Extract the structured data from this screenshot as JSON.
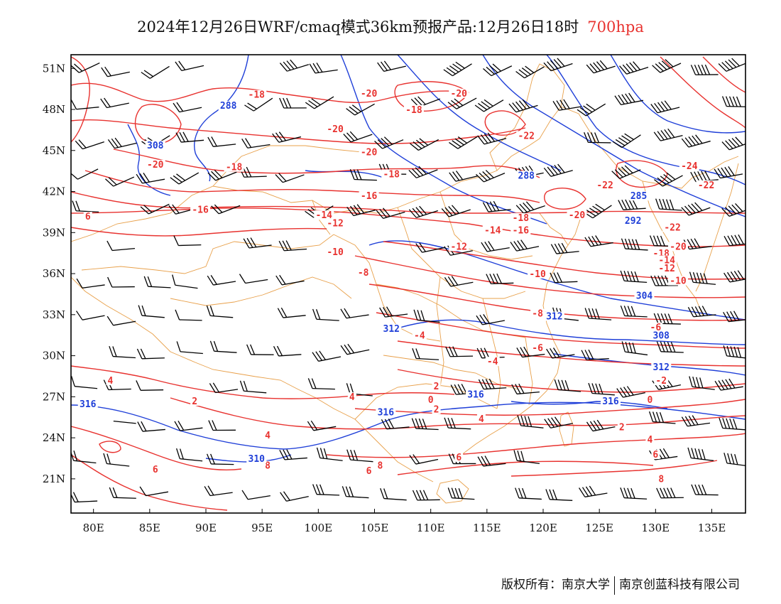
{
  "title": {
    "main": "2024年12月26日WRF/cmaq模式36km预报产品:12月26日18时",
    "level": "700hpa"
  },
  "map": {
    "lon_range": [
      78,
      138
    ],
    "lat_range": [
      18.5,
      52
    ],
    "lon_ticks": [
      "80E",
      "85E",
      "90E",
      "95E",
      "100E",
      "105E",
      "110E",
      "115E",
      "120E",
      "125E",
      "130E",
      "135E"
    ],
    "lat_ticks": [
      "51N",
      "48N",
      "45N",
      "42N",
      "39N",
      "36N",
      "33N",
      "30N",
      "27N",
      "24N",
      "21N"
    ],
    "colors": {
      "temperature": "#e8322f",
      "height": "#1f3fd8",
      "boundary": "#e8a04a",
      "wind": "#000000"
    },
    "temperature_labels": [
      {
        "text": "-18",
        "lon": 94.5,
        "lat": 48.9
      },
      {
        "text": "-20",
        "lon": 104.5,
        "lat": 49.0
      },
      {
        "text": "-20",
        "lon": 101.5,
        "lat": 46.4
      },
      {
        "text": "-20",
        "lon": 85.5,
        "lat": 43.8
      },
      {
        "text": "-18",
        "lon": 92.5,
        "lat": 43.6
      },
      {
        "text": "-20",
        "lon": 112.5,
        "lat": 49.0
      },
      {
        "text": "-18",
        "lon": 108.5,
        "lat": 47.8
      },
      {
        "text": "-20",
        "lon": 104.5,
        "lat": 44.7
      },
      {
        "text": "-18",
        "lon": 106.5,
        "lat": 43.1
      },
      {
        "text": "-16",
        "lon": 89.5,
        "lat": 40.5
      },
      {
        "text": "-16",
        "lon": 104.5,
        "lat": 41.5
      },
      {
        "text": "-14",
        "lon": 100.5,
        "lat": 40.1
      },
      {
        "text": "-12",
        "lon": 101.5,
        "lat": 39.5
      },
      {
        "text": "-22",
        "lon": 118.5,
        "lat": 45.9
      },
      {
        "text": "-22",
        "lon": 125.5,
        "lat": 42.3
      },
      {
        "text": "-24",
        "lon": 133.0,
        "lat": 43.7
      },
      {
        "text": "-22",
        "lon": 134.5,
        "lat": 42.3
      },
      {
        "text": "-22",
        "lon": 131.5,
        "lat": 39.2
      },
      {
        "text": "-20",
        "lon": 123.0,
        "lat": 40.1
      },
      {
        "text": "-18",
        "lon": 118.0,
        "lat": 39.9
      },
      {
        "text": "-16",
        "lon": 118.0,
        "lat": 39.0
      },
      {
        "text": "-14",
        "lon": 115.5,
        "lat": 39.0
      },
      {
        "text": "-12",
        "lon": 112.5,
        "lat": 37.8
      },
      {
        "text": "-10",
        "lon": 101.5,
        "lat": 37.4
      },
      {
        "text": "-8",
        "lon": 104.0,
        "lat": 35.9
      },
      {
        "text": "-10",
        "lon": 119.5,
        "lat": 35.8
      },
      {
        "text": "-8",
        "lon": 119.5,
        "lat": 32.9
      },
      {
        "text": "-6",
        "lon": 119.5,
        "lat": 30.4
      },
      {
        "text": "-4",
        "lon": 115.5,
        "lat": 29.4
      },
      {
        "text": "-4",
        "lon": 109.0,
        "lat": 31.3
      },
      {
        "text": "-20",
        "lon": 132.0,
        "lat": 37.8
      },
      {
        "text": "-18",
        "lon": 130.5,
        "lat": 37.3
      },
      {
        "text": "-14",
        "lon": 131.0,
        "lat": 36.8
      },
      {
        "text": "-12",
        "lon": 131.0,
        "lat": 36.2
      },
      {
        "text": "-10",
        "lon": 132.0,
        "lat": 35.3
      },
      {
        "text": "-6",
        "lon": 130.0,
        "lat": 31.9
      },
      {
        "text": "-2",
        "lon": 130.5,
        "lat": 28.0
      },
      {
        "text": "0",
        "lon": 129.5,
        "lat": 26.6
      },
      {
        "text": "2",
        "lon": 127.0,
        "lat": 24.6
      },
      {
        "text": "4",
        "lon": 129.5,
        "lat": 23.7
      },
      {
        "text": "6",
        "lon": 130.0,
        "lat": 22.6
      },
      {
        "text": "4",
        "lon": 81.5,
        "lat": 28.0
      },
      {
        "text": "2",
        "lon": 89.0,
        "lat": 26.5
      },
      {
        "text": "6",
        "lon": 85.5,
        "lat": 21.5
      },
      {
        "text": "4",
        "lon": 95.5,
        "lat": 24.0
      },
      {
        "text": "6",
        "lon": 104.5,
        "lat": 21.4
      },
      {
        "text": "4",
        "lon": 103.0,
        "lat": 26.8
      },
      {
        "text": "2",
        "lon": 110.5,
        "lat": 27.6
      },
      {
        "text": "0",
        "lon": 110.0,
        "lat": 26.6
      },
      {
        "text": "2",
        "lon": 110.5,
        "lat": 25.9
      },
      {
        "text": "4",
        "lon": 114.5,
        "lat": 25.2
      },
      {
        "text": "6",
        "lon": 112.5,
        "lat": 22.4
      },
      {
        "text": "8",
        "lon": 95.5,
        "lat": 21.8
      },
      {
        "text": "8",
        "lon": 105.5,
        "lat": 21.8
      },
      {
        "text": "8",
        "lon": 130.5,
        "lat": 20.8
      },
      {
        "text": "6",
        "lon": 79.5,
        "lat": 40.0
      }
    ],
    "height_labels": [
      {
        "text": "288",
        "lon": 92.0,
        "lat": 48.1
      },
      {
        "text": "308",
        "lon": 85.5,
        "lat": 45.2
      },
      {
        "text": "288",
        "lon": 118.5,
        "lat": 43.0
      },
      {
        "text": "285",
        "lon": 128.5,
        "lat": 41.5
      },
      {
        "text": "292",
        "lon": 128.0,
        "lat": 39.7
      },
      {
        "text": "312",
        "lon": 121.0,
        "lat": 32.7
      },
      {
        "text": "308",
        "lon": 130.5,
        "lat": 31.3
      },
      {
        "text": "304",
        "lon": 129.0,
        "lat": 34.2
      },
      {
        "text": "312",
        "lon": 130.5,
        "lat": 29.0
      },
      {
        "text": "316",
        "lon": 126.0,
        "lat": 26.5
      },
      {
        "text": "316",
        "lon": 114.0,
        "lat": 27.0
      },
      {
        "text": "316",
        "lon": 106.0,
        "lat": 25.7
      },
      {
        "text": "316",
        "lon": 79.5,
        "lat": 26.3
      },
      {
        "text": "310",
        "lon": 94.5,
        "lat": 22.3
      },
      {
        "text": "312",
        "lon": 106.5,
        "lat": 31.8
      }
    ]
  },
  "credits": {
    "left": "版权所有：南京大学",
    "right": "南京创蓝科技有限公司"
  }
}
